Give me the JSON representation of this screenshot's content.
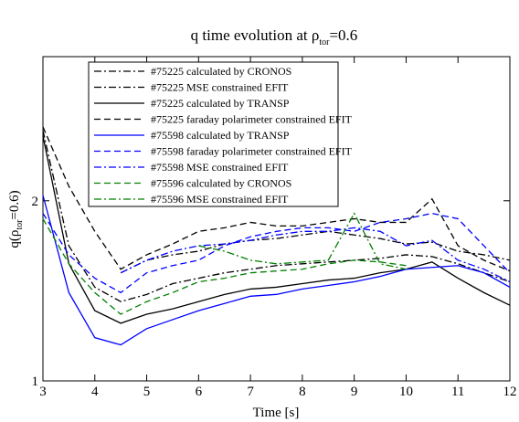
{
  "chart_data": {
    "type": "line",
    "title": {
      "main": "q time evolution at ρ",
      "sub": "tor",
      "rest": "=0.6"
    },
    "y_label": {
      "main": "q(ρ",
      "sub": "tor",
      "rest": "=0.6)"
    },
    "x_label": "Time [s]",
    "xlim": [
      3,
      12
    ],
    "xticks": [
      3,
      4,
      5,
      6,
      7,
      8,
      9,
      10,
      11,
      12
    ],
    "ylim": [
      1,
      2.8
    ],
    "yticks": [
      1,
      2
    ],
    "x": [
      3,
      3.5,
      4,
      4.5,
      5,
      5.5,
      6,
      6.5,
      7,
      7.5,
      8,
      8.5,
      9,
      9.5,
      10,
      10.5,
      11,
      11.5,
      12
    ],
    "series": [
      {
        "name": "#75225 calculated by CRONOS",
        "color": "#000000",
        "dash": "dashdot",
        "values": [
          2.39,
          1.75,
          1.52,
          1.44,
          1.48,
          1.54,
          1.57,
          1.6,
          1.62,
          1.64,
          1.65,
          1.66,
          1.67,
          1.68,
          1.7,
          1.69,
          1.65,
          1.6,
          1.55
        ]
      },
      {
        "name": "#75225 MSE constrained EFIT",
        "color": "#000000",
        "dash": "dashdot",
        "values": [
          null,
          null,
          null,
          1.6,
          1.67,
          1.7,
          1.72,
          1.76,
          1.78,
          1.79,
          1.81,
          1.83,
          1.81,
          1.79,
          1.76,
          1.77,
          1.72,
          1.7,
          1.67
        ]
      },
      {
        "name": "#75225 calculated by TRANSP",
        "color": "#000000",
        "dash": "solid",
        "values": [
          2.36,
          1.65,
          1.39,
          1.32,
          1.37,
          1.4,
          1.44,
          1.48,
          1.51,
          1.52,
          1.54,
          1.56,
          1.57,
          1.6,
          1.62,
          1.66,
          1.57,
          1.49,
          1.42
        ]
      },
      {
        "name": "#75225 faraday polarimeter constrained EFIT",
        "color": "#000000",
        "dash": "dashed",
        "values": [
          2.41,
          2.08,
          1.83,
          1.62,
          1.7,
          1.76,
          1.83,
          1.85,
          1.88,
          1.86,
          1.86,
          1.88,
          1.9,
          1.88,
          1.88,
          2.01,
          1.75,
          1.67,
          1.61
        ]
      },
      {
        "name": "#75598 calculated by TRANSP",
        "color": "#0000ff",
        "dash": "solid",
        "values": [
          2.03,
          1.49,
          1.24,
          1.2,
          1.29,
          1.34,
          1.39,
          1.43,
          1.47,
          1.48,
          1.51,
          1.53,
          1.55,
          1.58,
          1.62,
          1.63,
          1.64,
          1.6,
          1.52
        ]
      },
      {
        "name": "#75598 faraday polarimeter constrained EFIT",
        "color": "#0000ff",
        "dash": "dashed",
        "values": [
          1.93,
          1.7,
          1.57,
          1.49,
          1.6,
          1.64,
          1.67,
          1.75,
          1.8,
          1.83,
          1.85,
          1.85,
          1.83,
          1.88,
          1.9,
          1.93,
          1.9,
          1.75,
          1.6
        ]
      },
      {
        "name": "#75598 MSE constrained  EFIT",
        "color": "#0000ff",
        "dash": "dashdot",
        "values": [
          null,
          null,
          null,
          1.6,
          1.67,
          1.72,
          1.75,
          1.76,
          1.78,
          1.81,
          1.83,
          1.83,
          1.85,
          1.83,
          1.75,
          1.78,
          1.67,
          1.62,
          1.55
        ]
      },
      {
        "name": "#75596 calculated by CRONOS",
        "color": "#008000",
        "dash": "dashed",
        "values": [
          1.9,
          1.65,
          1.49,
          1.37,
          1.44,
          1.49,
          1.55,
          1.57,
          1.6,
          1.61,
          1.62,
          1.65,
          1.67,
          1.66,
          1.64,
          null,
          null,
          null,
          null
        ]
      },
      {
        "name": "#75596 MSE constrained EFIT",
        "color": "#008000",
        "dash": "dashdot",
        "values": [
          null,
          null,
          null,
          null,
          null,
          null,
          1.75,
          1.72,
          1.67,
          1.65,
          1.66,
          1.67,
          1.93,
          1.65,
          1.62,
          null,
          null,
          null,
          null
        ]
      }
    ]
  }
}
